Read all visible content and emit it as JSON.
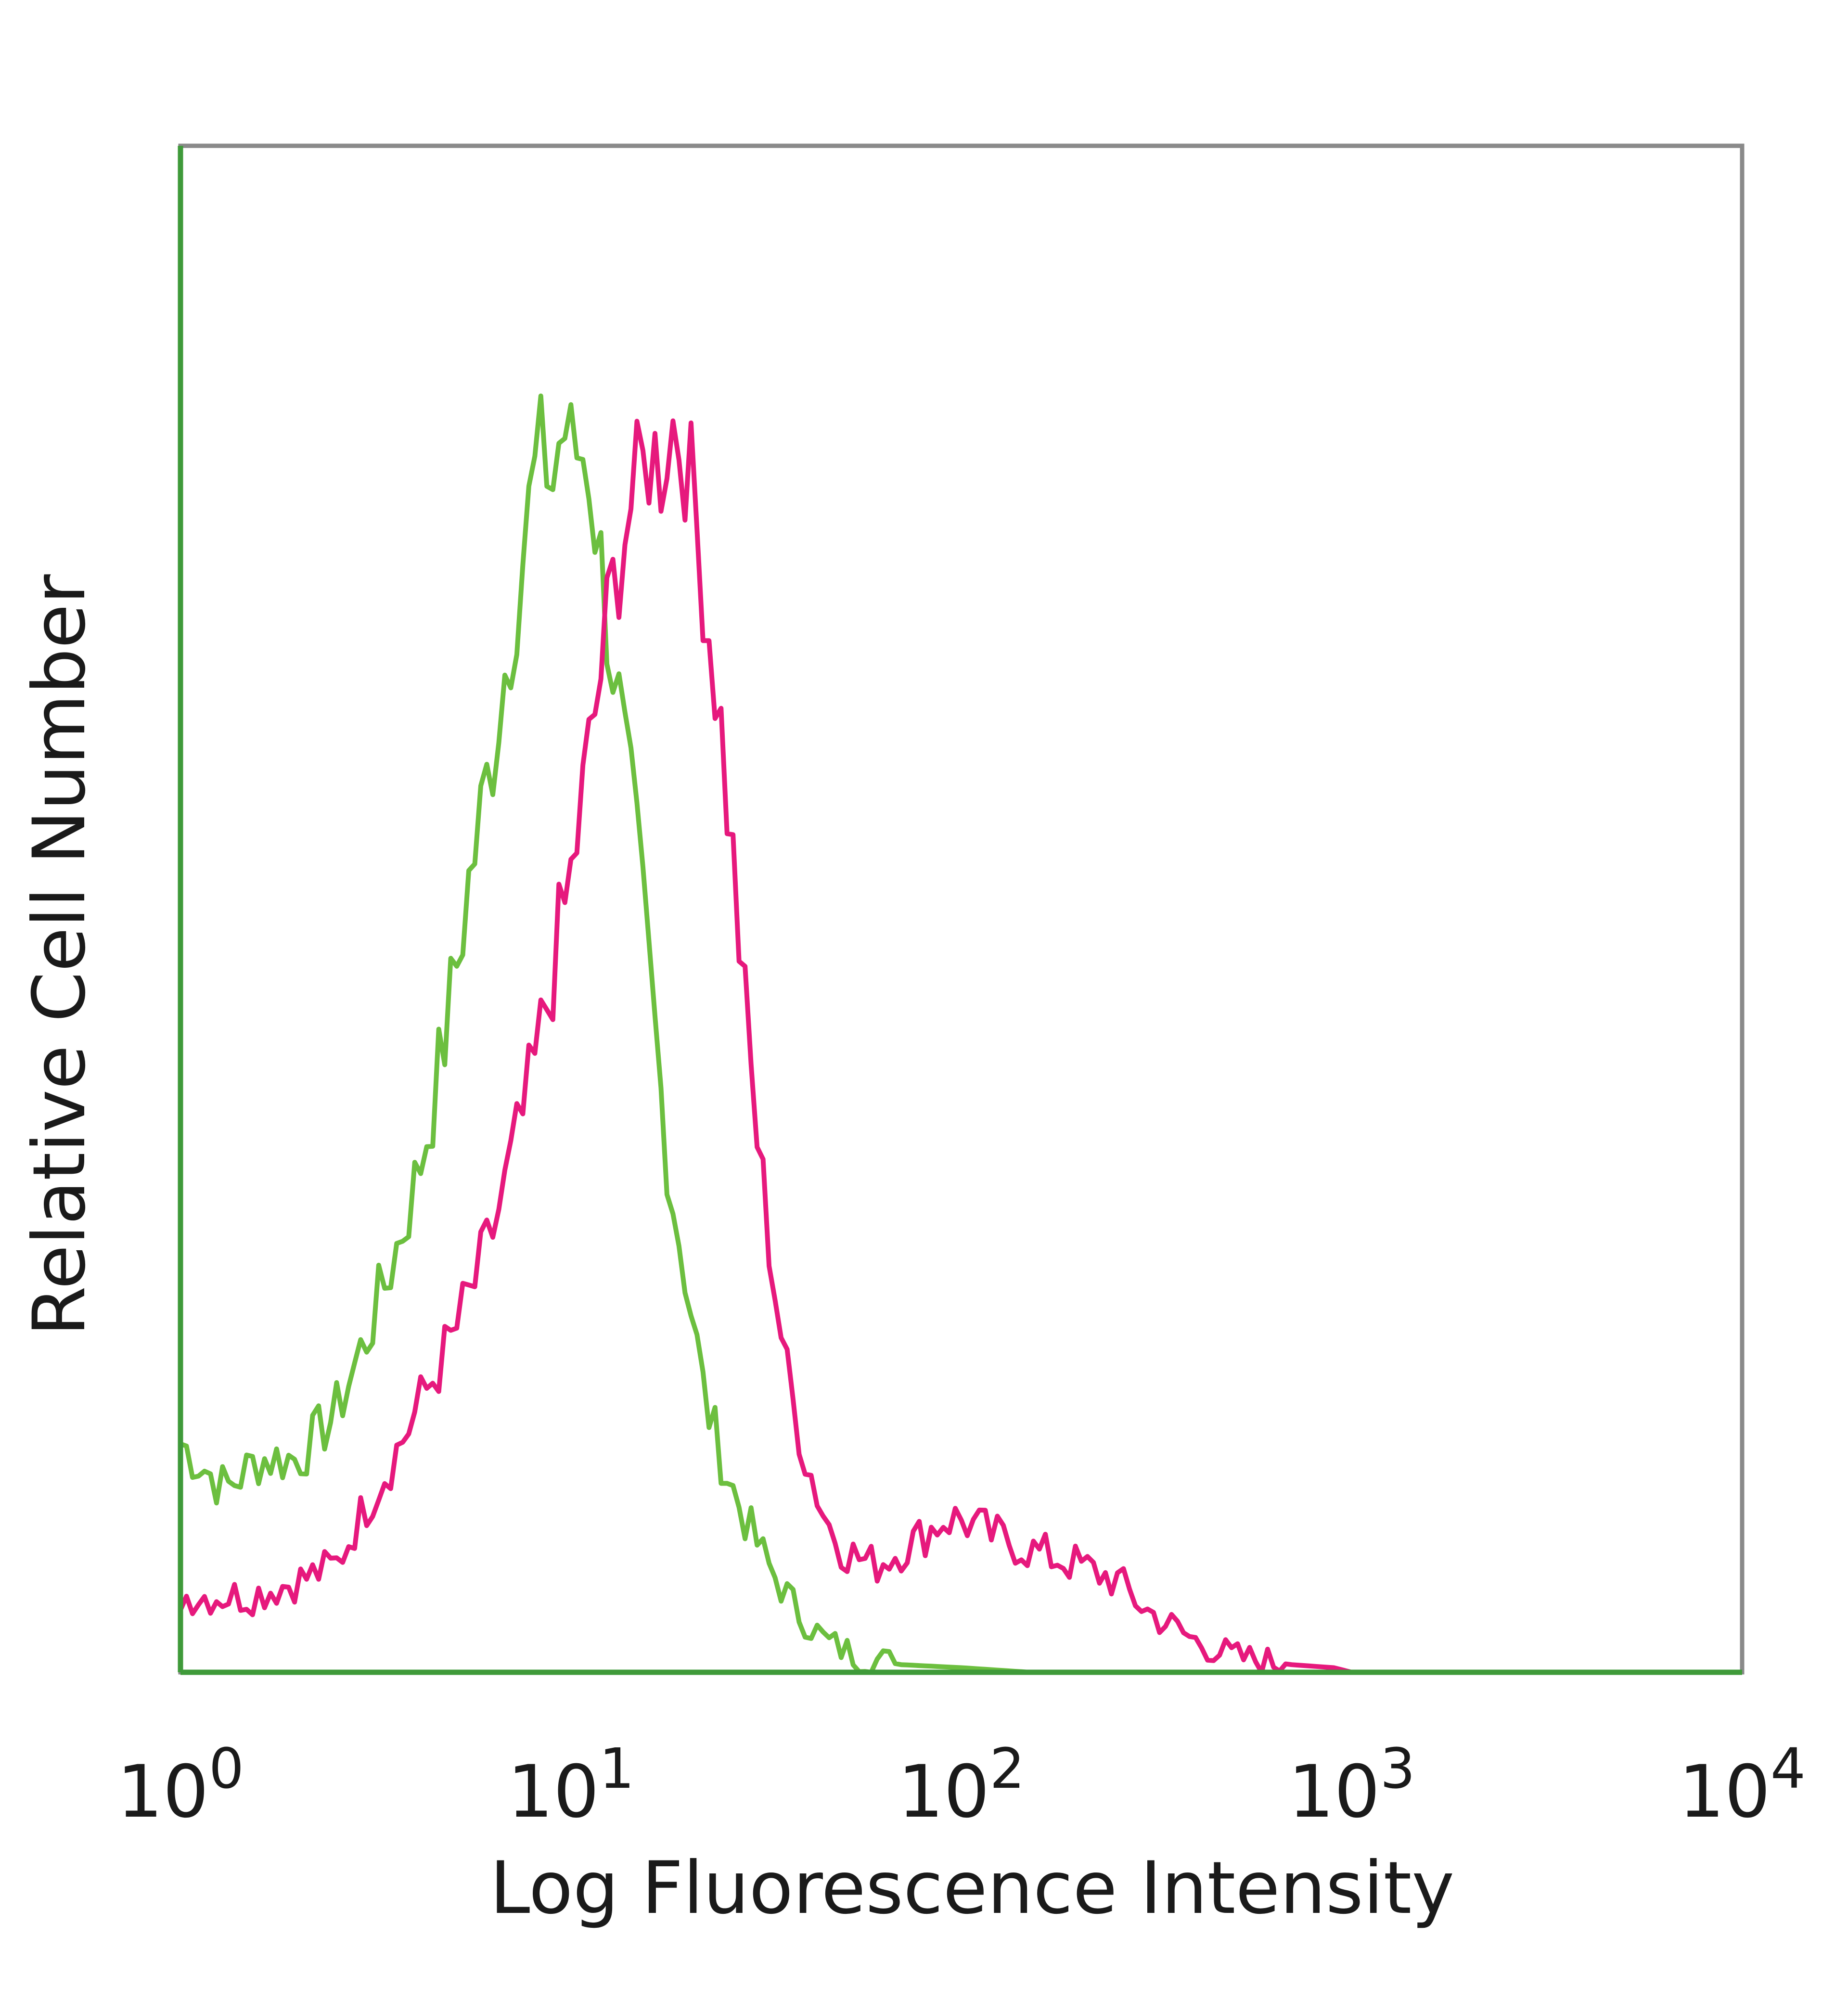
{
  "chart_data": {
    "type": "line",
    "xlabel": "Log Fluorescence Intensity",
    "ylabel": "Relative Cell Number",
    "x_scale": "log",
    "xlim": [
      1,
      10000
    ],
    "ylim": [
      0,
      100
    ],
    "x_ticks": [
      {
        "value": 1,
        "base": "10",
        "exp": "0"
      },
      {
        "value": 10,
        "base": "10",
        "exp": "1"
      },
      {
        "value": 100,
        "base": "10",
        "exp": "2"
      },
      {
        "value": 1000,
        "base": "10",
        "exp": "3"
      },
      {
        "value": 10000,
        "base": "10",
        "exp": "4"
      }
    ],
    "series": [
      {
        "color": "#6cbf3f",
        "points": [
          [
            1.0,
            15
          ],
          [
            1.3,
            12
          ],
          [
            1.6,
            14
          ],
          [
            2.0,
            14
          ],
          [
            2.5,
            17
          ],
          [
            3.0,
            22
          ],
          [
            3.5,
            27
          ],
          [
            4.0,
            32
          ],
          [
            4.5,
            38
          ],
          [
            5.0,
            45
          ],
          [
            5.5,
            52
          ],
          [
            6.0,
            57
          ],
          [
            6.5,
            63
          ],
          [
            7.0,
            68
          ],
          [
            7.5,
            73
          ],
          [
            8.0,
            78
          ],
          [
            8.5,
            80
          ],
          [
            9.0,
            78
          ],
          [
            9.5,
            82
          ],
          [
            10.0,
            80
          ],
          [
            11.0,
            80
          ],
          [
            12.0,
            72
          ],
          [
            13.0,
            65
          ],
          [
            14.0,
            58
          ],
          [
            15.0,
            52
          ],
          [
            16.0,
            45
          ],
          [
            17.0,
            38
          ],
          [
            18.0,
            32
          ],
          [
            20.0,
            25
          ],
          [
            22.0,
            18
          ],
          [
            25.0,
            13
          ],
          [
            28.0,
            10
          ],
          [
            32.0,
            7
          ],
          [
            38.0,
            4
          ],
          [
            45.0,
            2
          ],
          [
            55.0,
            1
          ],
          [
            70.0,
            0.5
          ],
          [
            100.0,
            0.3
          ],
          [
            150.0,
            0
          ],
          [
            10000.0,
            0
          ]
        ]
      },
      {
        "color": "#e6197d",
        "points": [
          [
            1.0,
            5
          ],
          [
            1.5,
            5
          ],
          [
            2.0,
            6
          ],
          [
            2.5,
            7
          ],
          [
            3.0,
            11
          ],
          [
            3.5,
            14
          ],
          [
            4.0,
            17
          ],
          [
            5.0,
            22
          ],
          [
            6.0,
            27
          ],
          [
            7.0,
            33
          ],
          [
            8.0,
            39
          ],
          [
            9.0,
            46
          ],
          [
            10.0,
            52
          ],
          [
            11.0,
            59
          ],
          [
            12.0,
            66
          ],
          [
            13.0,
            72
          ],
          [
            14.0,
            76
          ],
          [
            15.0,
            78
          ],
          [
            16.0,
            80
          ],
          [
            17.0,
            79
          ],
          [
            18.0,
            82
          ],
          [
            19.0,
            81
          ],
          [
            20.0,
            79
          ],
          [
            22.0,
            71
          ],
          [
            24.0,
            63
          ],
          [
            26.0,
            53
          ],
          [
            28.0,
            43
          ],
          [
            30.0,
            35
          ],
          [
            33.0,
            26
          ],
          [
            36.0,
            19
          ],
          [
            40.0,
            14
          ],
          [
            45.0,
            10
          ],
          [
            50.0,
            8
          ],
          [
            60.0,
            7
          ],
          [
            70.0,
            8
          ],
          [
            80.0,
            9
          ],
          [
            90.0,
            10
          ],
          [
            100.0,
            10
          ],
          [
            120.0,
            9
          ],
          [
            150.0,
            8
          ],
          [
            200.0,
            7
          ],
          [
            250.0,
            6
          ],
          [
            300.0,
            4
          ],
          [
            400.0,
            2
          ],
          [
            500.0,
            1
          ],
          [
            700.0,
            0.5
          ],
          [
            900.0,
            0.3
          ],
          [
            1000.0,
            0
          ],
          [
            10000.0,
            0
          ]
        ]
      }
    ],
    "colors": {
      "frame": "#8a8a8a",
      "left_axis": "#3f9a3a",
      "baseline": "#3f9a3a"
    }
  }
}
